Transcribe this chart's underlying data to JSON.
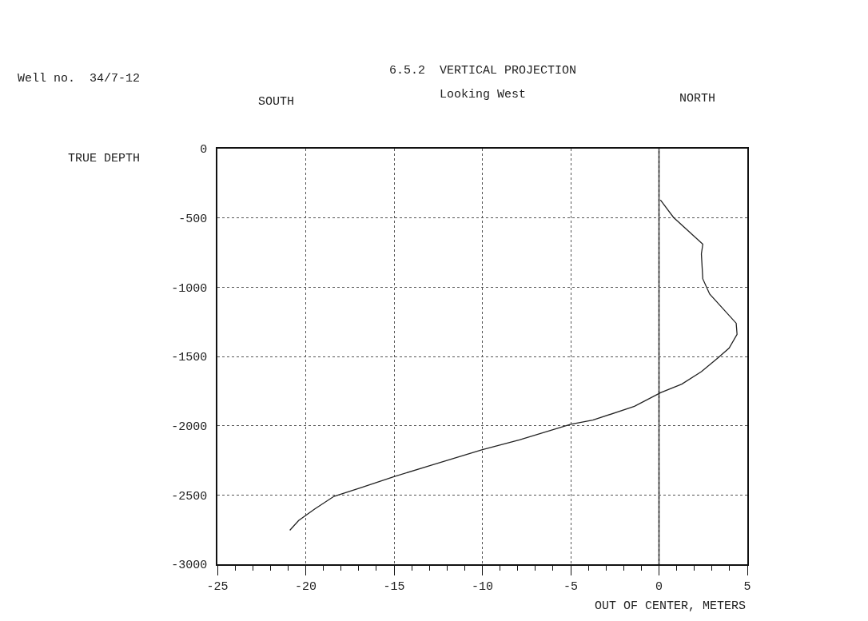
{
  "chart_data": {
    "type": "line",
    "title": "6.5.2  VERTICAL PROJECTION",
    "subtitle": "Looking West",
    "xlabel": "OUT OF CENTER, METERS",
    "ylabel": "TRUE DEPTH",
    "annotations": [
      "Well no.  34/7-12",
      "SOUTH",
      "NORTH"
    ],
    "x": [
      0.08,
      0.82,
      2.48,
      2.4,
      2.48,
      2.87,
      3.66,
      4.37,
      4.42,
      3.97,
      3.34,
      2.4,
      1.29,
      0.11,
      -1.39,
      -3.75,
      -5.0,
      -7.9,
      -10.0,
      -12.9,
      -15.0,
      -16.9,
      -18.4,
      -19.5,
      -20.4,
      -20.9
    ],
    "series": [
      {
        "color": "#222222",
        "values": [
          -370,
          -496,
          -690,
          -760,
          -940,
          -1050,
          -1160,
          -1260,
          -1340,
          -1440,
          -1510,
          -1610,
          -1700,
          -1760,
          -1860,
          -1960,
          -1990,
          -2102,
          -2173,
          -2286,
          -2367,
          -2449,
          -2510,
          -2602,
          -2684,
          -2755
        ]
      }
    ],
    "xlim": [
      -25,
      5
    ],
    "xticks": [
      -25,
      -20,
      -15,
      -10,
      -5,
      0,
      5
    ],
    "ylim": [
      -3000,
      0
    ],
    "yticks": [
      -3000,
      -2500,
      -2000,
      -1500,
      -1000,
      -500,
      0
    ],
    "ref_lines": [
      {
        "axis": "x",
        "value": 0,
        "color": "#111111",
        "line_style": "solid"
      }
    ],
    "grid": true,
    "marker": "none",
    "line_style": "solid"
  }
}
